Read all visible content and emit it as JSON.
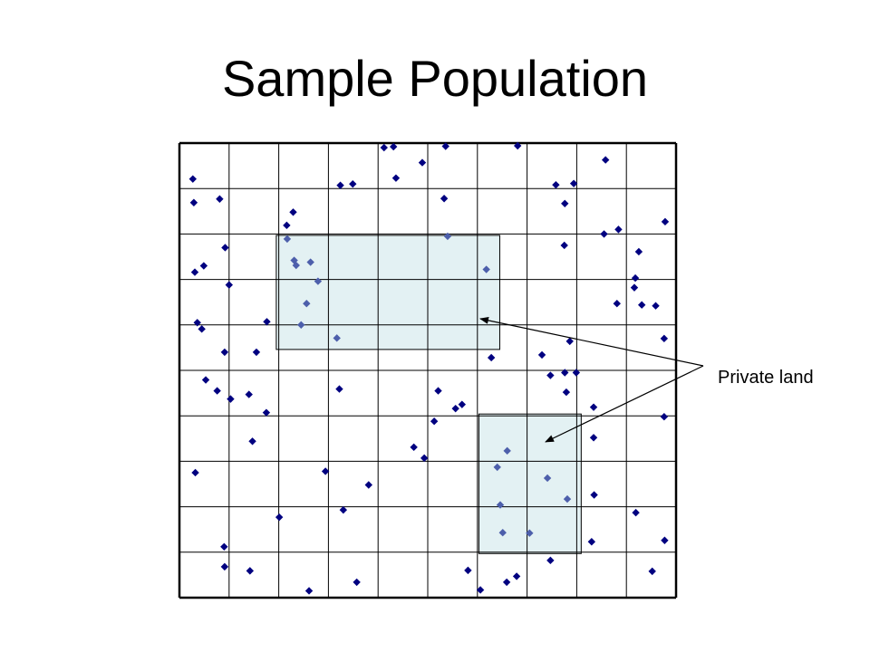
{
  "slide": {
    "title": "Sample Population"
  },
  "annotation": {
    "label": "Private land"
  },
  "colors": {
    "grid_line": "#000000",
    "private_fill": "#e3f1f3",
    "point_outside": "#000080",
    "point_inside": "#4d5fab",
    "arrow": "#000000"
  },
  "grid": {
    "columns": 10,
    "rows": 10
  },
  "private_land": [
    {
      "name": "private-area-1",
      "x0": 1.95,
      "x1": 6.45,
      "y0": 7.97,
      "y1": 5.46
    },
    {
      "name": "private-area-2",
      "x0": 6.03,
      "x1": 8.09,
      "y0": 4.04,
      "y1": 0.97
    }
  ],
  "points": [
    [
      0.27,
      9.21
    ],
    [
      0.29,
      8.69
    ],
    [
      0.81,
      8.77
    ],
    [
      0.31,
      7.16
    ],
    [
      0.49,
      7.3
    ],
    [
      0.92,
      7.7
    ],
    [
      1.0,
      6.88
    ],
    [
      0.36,
      6.05
    ],
    [
      0.45,
      5.91
    ],
    [
      0.91,
      5.4
    ],
    [
      1.55,
      5.4
    ],
    [
      1.76,
      6.07
    ],
    [
      2.16,
      8.19
    ],
    [
      2.17,
      7.89
    ],
    [
      2.35,
      7.31
    ],
    [
      2.64,
      7.38
    ],
    [
      3.24,
      9.07
    ],
    [
      3.49,
      9.1
    ],
    [
      4.12,
      9.9
    ],
    [
      4.31,
      9.92
    ],
    [
      4.36,
      9.23
    ],
    [
      4.89,
      9.57
    ],
    [
      5.36,
      9.93
    ],
    [
      5.33,
      8.78
    ],
    [
      7.58,
      9.08
    ],
    [
      7.94,
      9.11
    ],
    [
      7.76,
      8.67
    ],
    [
      8.58,
      9.63
    ],
    [
      8.55,
      8.0
    ],
    [
      8.84,
      8.1
    ],
    [
      7.75,
      7.75
    ],
    [
      9.78,
      8.27
    ],
    [
      9.25,
      7.61
    ],
    [
      9.18,
      7.03
    ],
    [
      9.16,
      6.82
    ],
    [
      8.81,
      6.47
    ],
    [
      9.31,
      6.44
    ],
    [
      9.59,
      6.42
    ],
    [
      9.76,
      5.7
    ],
    [
      7.86,
      5.64
    ],
    [
      7.3,
      5.34
    ],
    [
      7.47,
      4.89
    ],
    [
      7.76,
      4.95
    ],
    [
      7.99,
      4.95
    ],
    [
      7.79,
      4.52
    ],
    [
      8.34,
      4.19
    ],
    [
      8.34,
      3.52
    ],
    [
      9.76,
      3.98
    ],
    [
      0.53,
      4.79
    ],
    [
      0.76,
      4.55
    ],
    [
      1.03,
      4.37
    ],
    [
      1.4,
      4.47
    ],
    [
      1.75,
      4.07
    ],
    [
      1.47,
      3.44
    ],
    [
      0.32,
      2.75
    ],
    [
      2.94,
      2.78
    ],
    [
      3.22,
      4.59
    ],
    [
      3.81,
      2.48
    ],
    [
      2.01,
      1.77
    ],
    [
      3.3,
      1.93
    ],
    [
      4.72,
      3.31
    ],
    [
      4.93,
      3.07
    ],
    [
      5.21,
      4.55
    ],
    [
      5.56,
      4.16
    ],
    [
      5.69,
      4.25
    ],
    [
      7.47,
      0.82
    ],
    [
      8.35,
      2.26
    ],
    [
      8.3,
      1.23
    ],
    [
      9.19,
      1.87
    ],
    [
      9.77,
      1.26
    ],
    [
      9.52,
      0.58
    ],
    [
      0.9,
      1.12
    ],
    [
      0.91,
      0.68
    ],
    [
      1.42,
      0.59
    ],
    [
      2.61,
      0.15
    ],
    [
      3.57,
      0.34
    ],
    [
      5.81,
      0.6
    ],
    [
      6.06,
      0.17
    ],
    [
      6.59,
      0.34
    ],
    [
      6.79,
      0.47
    ],
    [
      6.28,
      5.28
    ],
    [
      5.13,
      3.88
    ],
    [
      6.81,
      9.94
    ],
    [
      2.29,
      8.48
    ],
    [
      2.31,
      7.42
    ],
    [
      2.79,
      6.96
    ],
    [
      2.56,
      6.47
    ],
    [
      2.45,
      6.0
    ],
    [
      3.17,
      5.71
    ],
    [
      5.4,
      7.95
    ],
    [
      6.18,
      7.22
    ],
    [
      6.6,
      3.23
    ],
    [
      6.4,
      2.87
    ],
    [
      7.41,
      2.63
    ],
    [
      7.81,
      2.17
    ],
    [
      6.46,
      2.04
    ],
    [
      6.51,
      1.43
    ],
    [
      7.05,
      1.42
    ]
  ]
}
